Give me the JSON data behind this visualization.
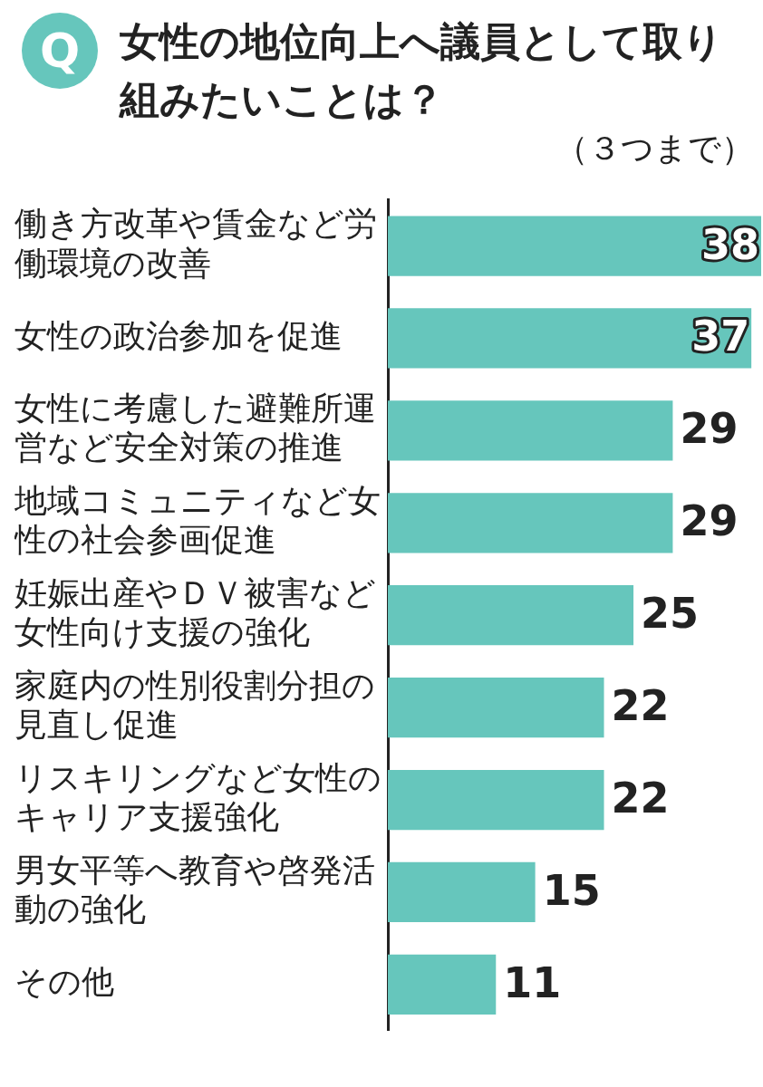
{
  "chart_data": {
    "type": "bar",
    "orientation": "horizontal",
    "title": "女性の地位向上へ議員として取り組みたいことは？",
    "subtitle": "（３つまで）",
    "annotations": [
      "Q"
    ],
    "categories": [
      "働き方改革や賃金など労働環境の改善",
      "女性の政治参加を促進",
      "女性に考慮した避難所運営など安全対策の推進",
      "地域コミュニティなど女性の社会参画促進",
      "妊娠出産やＤＶ被害など女性向け支援の強化",
      "家庭内の性別役割分担の見直し促進",
      "リスキリングなど女性のキャリア支援強化",
      "男女平等へ教育や啓発活動の強化",
      "その他"
    ],
    "values": [
      38,
      37,
      29,
      29,
      25,
      22,
      22,
      15,
      11
    ],
    "color": "#66c6bc",
    "data_labels": true,
    "grid": false,
    "legend": false
  }
}
